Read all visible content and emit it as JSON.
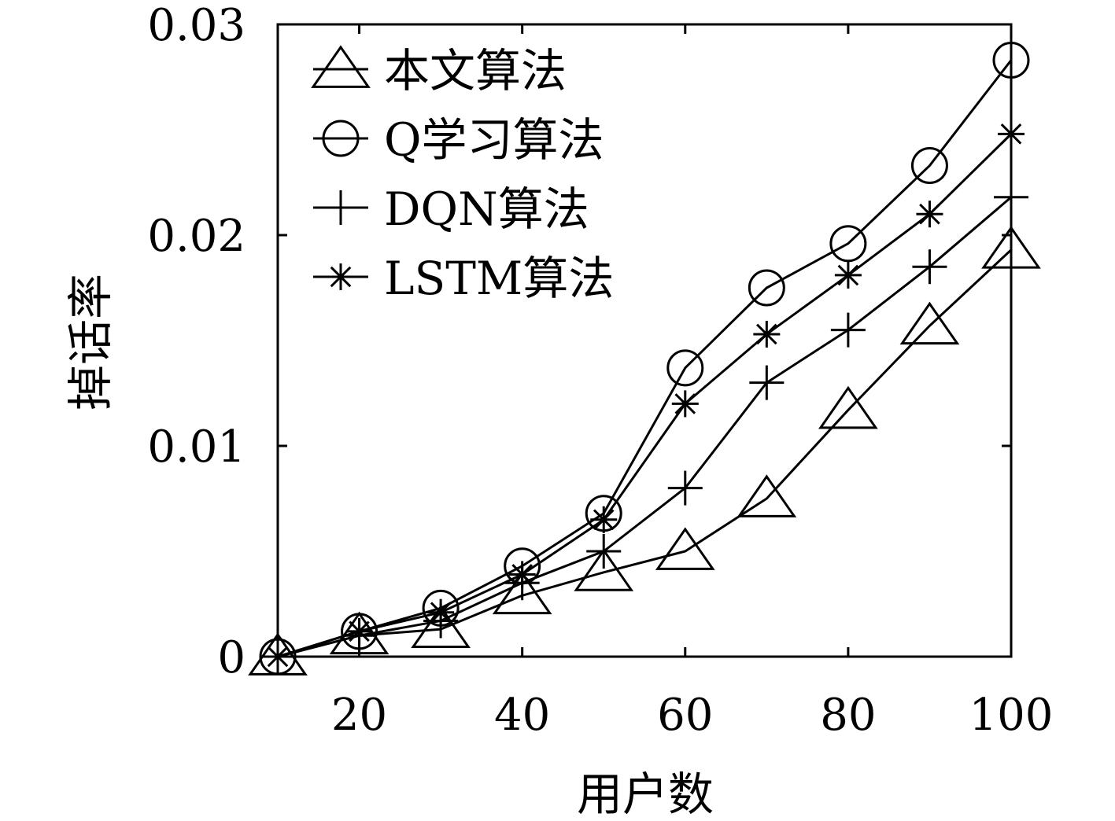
{
  "chart_data": {
    "type": "line",
    "title": "",
    "xlabel": "用户数",
    "ylabel": "掉话率",
    "xlim": [
      10,
      100
    ],
    "ylim": [
      0,
      0.03
    ],
    "xticks": [
      20,
      40,
      60,
      80,
      100
    ],
    "xtick_labels": [
      "20",
      "40",
      "60",
      "80",
      "100"
    ],
    "yticks": [
      0,
      0.01,
      0.02,
      0.03
    ],
    "ytick_labels": [
      "0",
      "0.01",
      "0.02",
      "0.03"
    ],
    "grid": false,
    "legend_position": "top-left",
    "x": [
      10,
      20,
      30,
      40,
      50,
      60,
      70,
      80,
      90,
      100
    ],
    "series": [
      {
        "name": "本文算法",
        "marker": "triangle",
        "values": [
          0,
          0.001,
          0.0013,
          0.0029,
          0.004,
          0.005,
          0.0075,
          0.0117,
          0.0157,
          0.0193
        ]
      },
      {
        "name": "Q学习算法",
        "marker": "circle",
        "values": [
          0,
          0.0012,
          0.0023,
          0.0043,
          0.0068,
          0.0137,
          0.0175,
          0.0196,
          0.0233,
          0.0283
        ]
      },
      {
        "name": "DQN算法",
        "marker": "plus",
        "values": [
          0,
          0.001,
          0.0017,
          0.0035,
          0.005,
          0.008,
          0.013,
          0.0155,
          0.0185,
          0.0218
        ]
      },
      {
        "name": "LSTM算法",
        "marker": "star",
        "values": [
          0,
          0.0012,
          0.0021,
          0.0039,
          0.0065,
          0.012,
          0.0153,
          0.0181,
          0.021,
          0.0248
        ]
      }
    ],
    "line_color": "#000000"
  }
}
